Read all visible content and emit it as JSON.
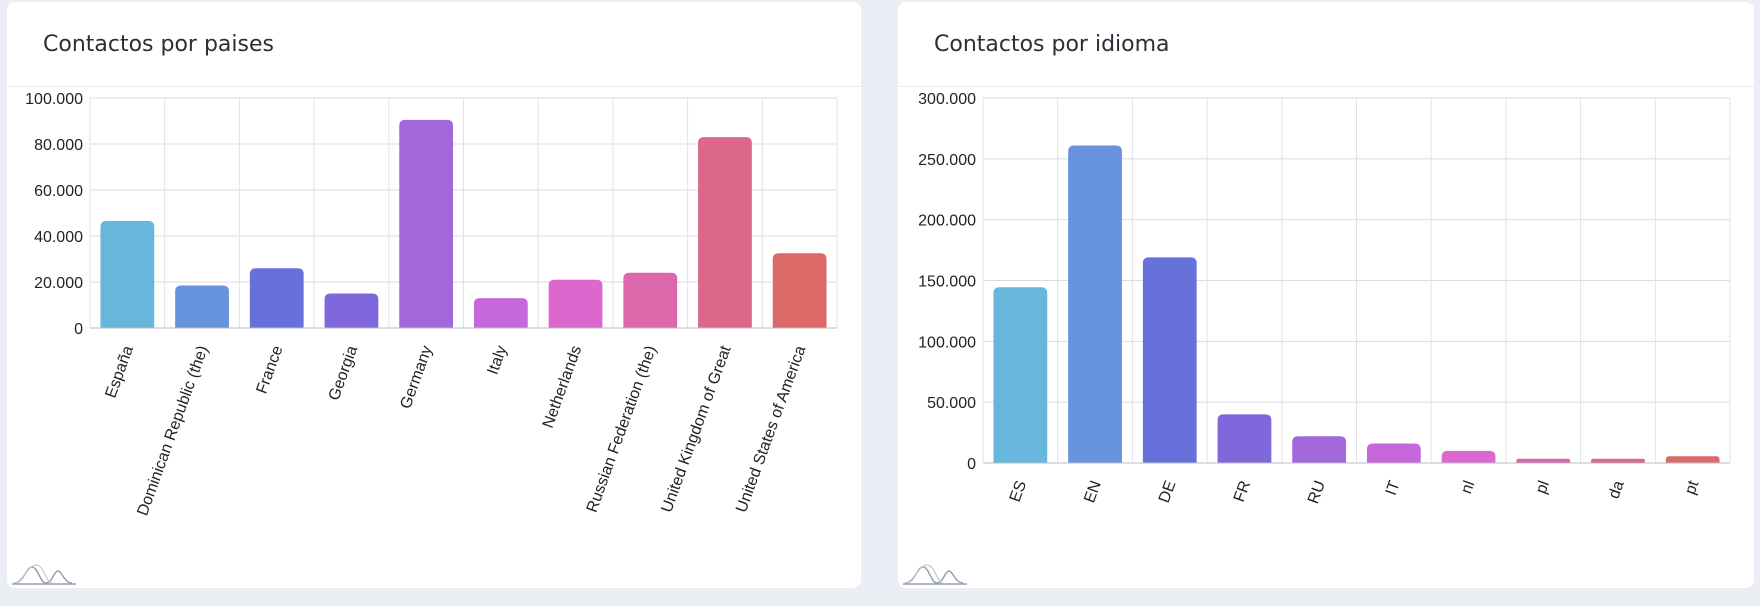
{
  "cards": [
    {
      "id": "countries",
      "title": "Contactos por paises",
      "chart_data": {
        "type": "bar",
        "title": "",
        "xlabel": "",
        "ylabel": "",
        "categories": [
          "España",
          "Dominican Republic (the)",
          "France",
          "Georgia",
          "Germany",
          "Italy",
          "Netherlands",
          "Russian Federation (the)",
          "United Kingdom of Great",
          "United States of America"
        ],
        "values": [
          46500,
          18500,
          26000,
          15000,
          90500,
          13000,
          21000,
          24000,
          83000,
          32500
        ],
        "colors": [
          "#67b7dc",
          "#6794dc",
          "#6771dc",
          "#8067dc",
          "#a367dc",
          "#c767dc",
          "#dc67ce",
          "#dc67ab",
          "#dc6788",
          "#dc6967"
        ],
        "ylim": [
          0,
          100000
        ],
        "yticks": [
          0,
          20000,
          40000,
          60000,
          80000,
          100000
        ],
        "ytick_labels": [
          "0",
          "20.000",
          "40.000",
          "60.000",
          "80.000",
          "100.000"
        ],
        "grid": true,
        "label_rotation": -70
      }
    },
    {
      "id": "languages",
      "title": "Contactos por idioma",
      "chart_data": {
        "type": "bar",
        "title": "",
        "xlabel": "",
        "ylabel": "",
        "categories": [
          "ES",
          "EN",
          "DE",
          "FR",
          "RU",
          "IT",
          "nl",
          "pl",
          "da",
          "pt"
        ],
        "values": [
          144500,
          261000,
          169000,
          40000,
          22000,
          16000,
          10000,
          3500,
          3500,
          5500
        ],
        "colors": [
          "#67b7dc",
          "#6794dc",
          "#6771dc",
          "#8067dc",
          "#a367dc",
          "#c767dc",
          "#dc67ce",
          "#dc67ab",
          "#dc6788",
          "#dc6967"
        ],
        "ylim": [
          0,
          300000
        ],
        "yticks": [
          0,
          50000,
          100000,
          150000,
          200000,
          250000,
          300000
        ],
        "ytick_labels": [
          "0",
          "50.000",
          "100.000",
          "150.000",
          "200.000",
          "250.000",
          "300.000"
        ],
        "grid": true,
        "label_rotation": -70
      }
    }
  ]
}
